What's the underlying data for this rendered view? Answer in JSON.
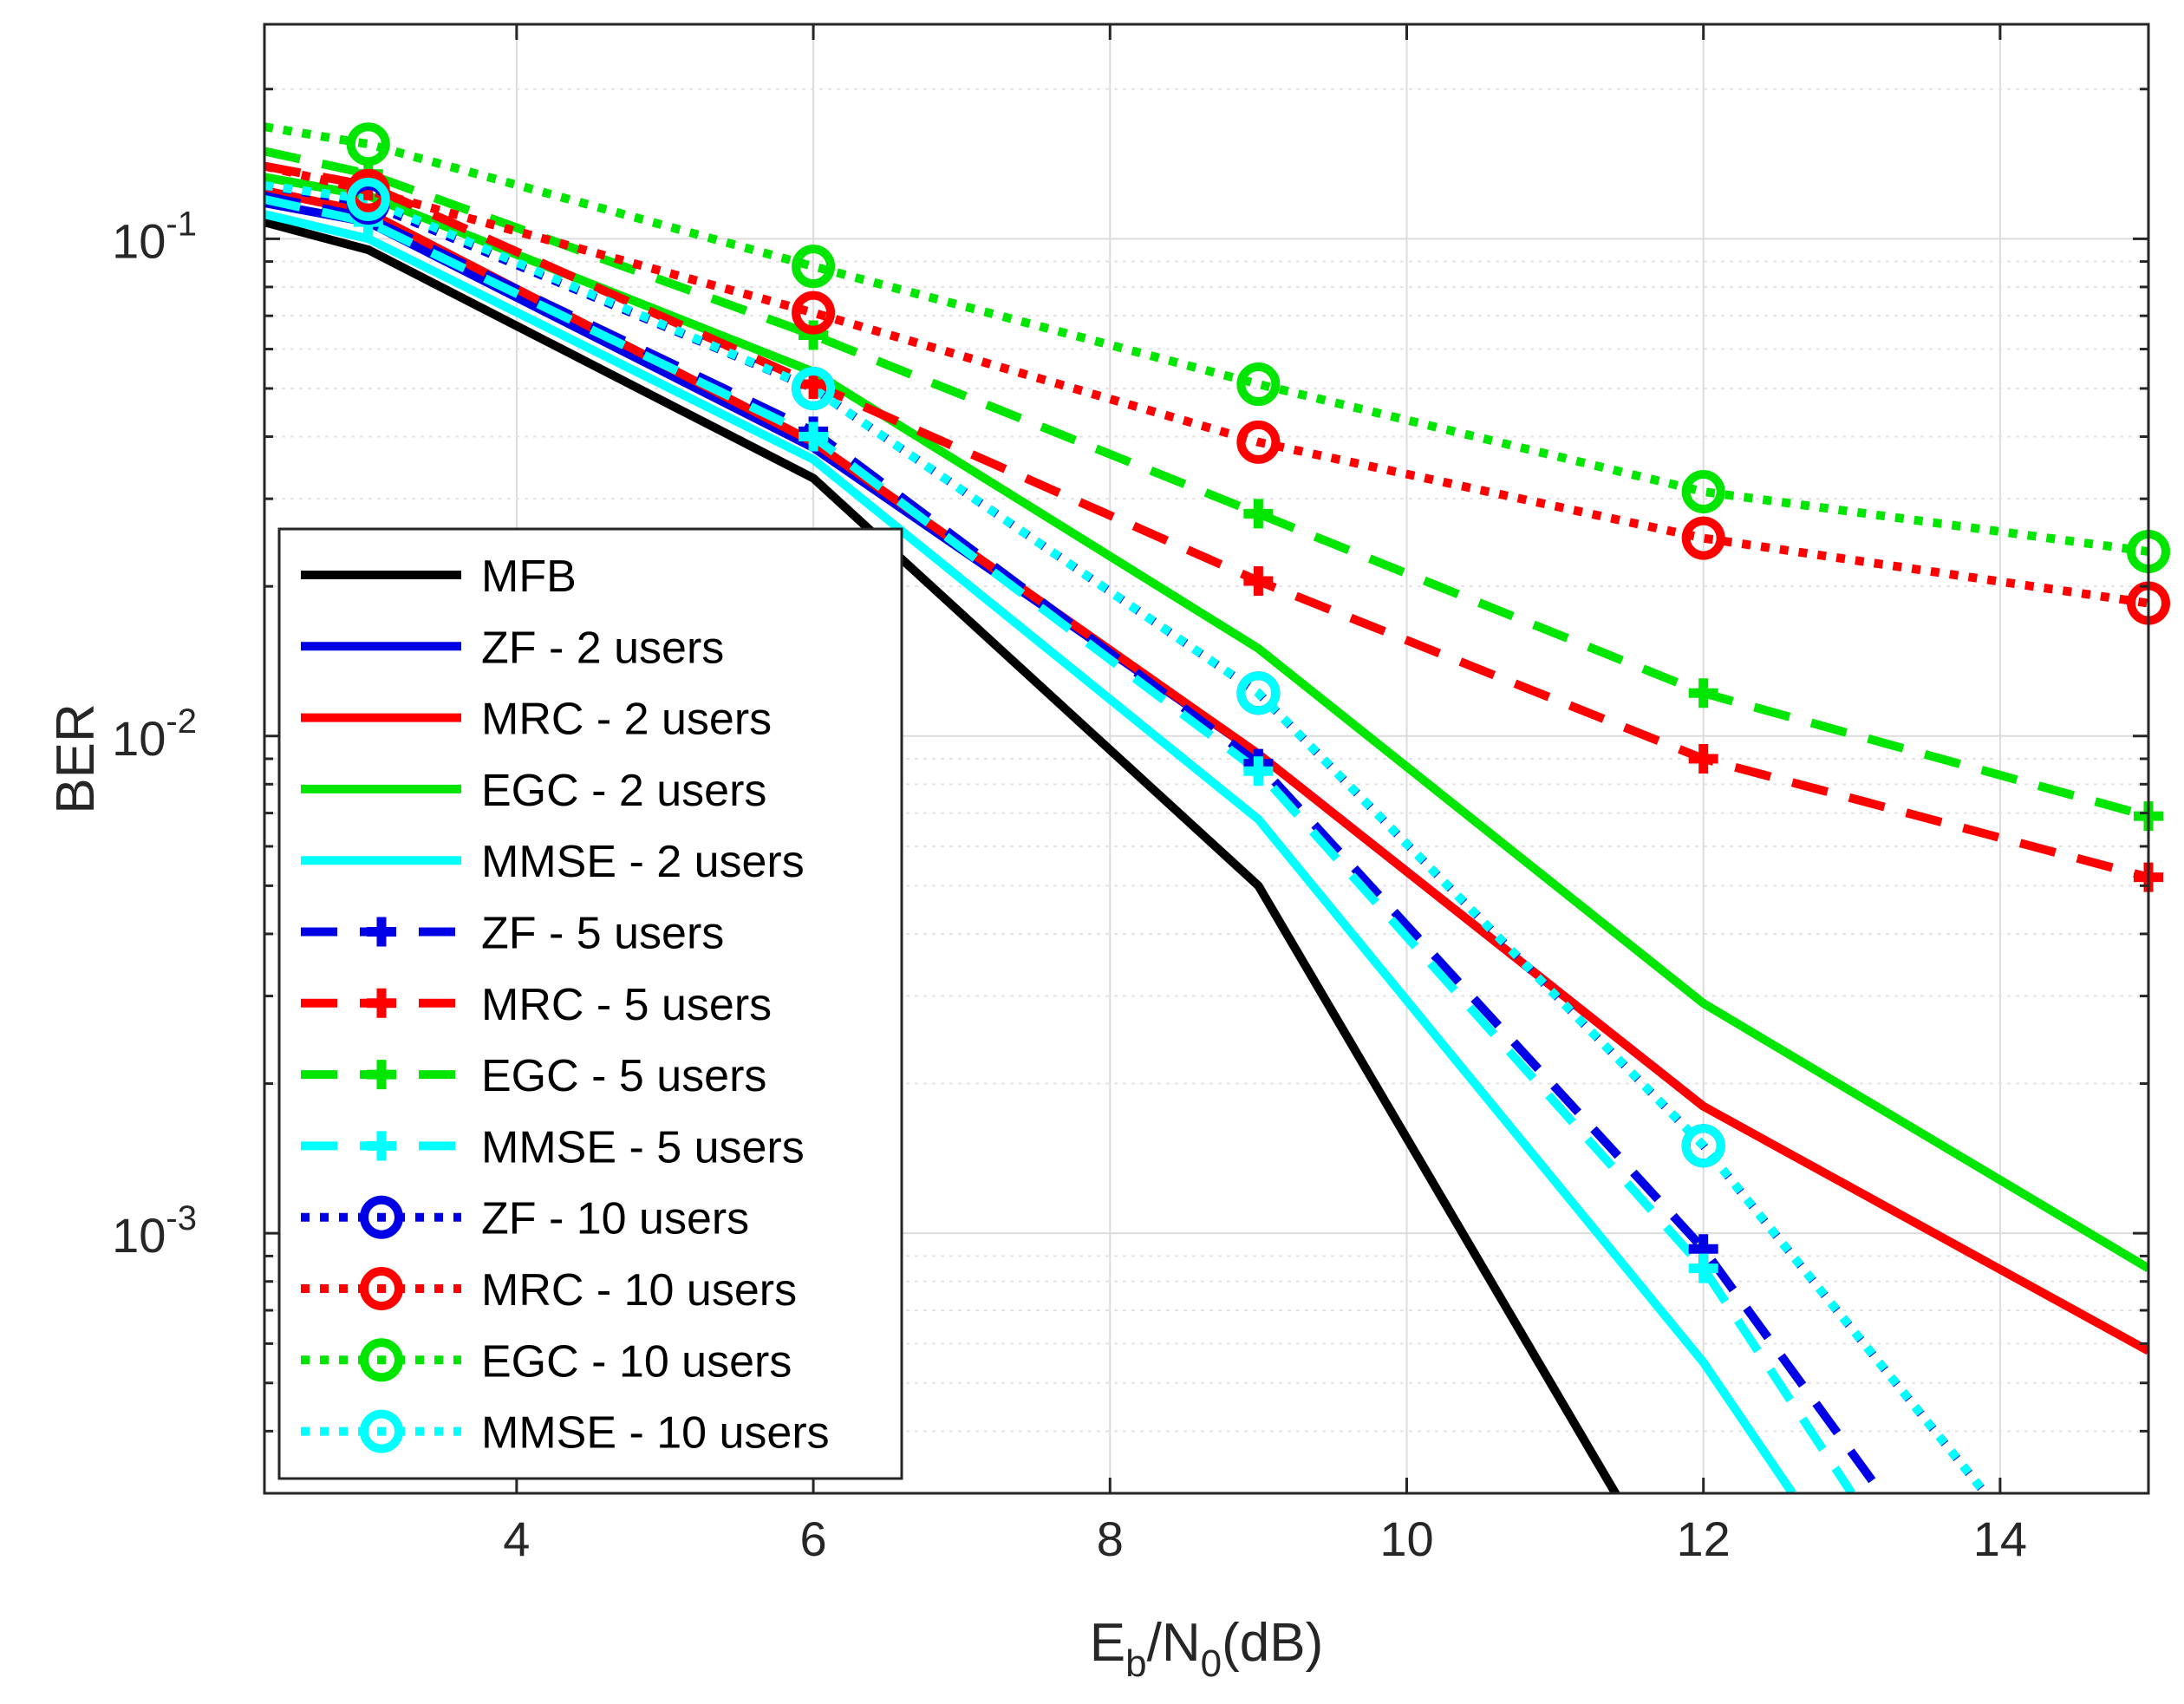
{
  "chart_data": {
    "type": "line",
    "xlabel": {
      "base1": "E",
      "sub1": "b",
      "mid": "/N",
      "sub2": "0",
      "tail": "(dB)"
    },
    "ylabel": "BER",
    "xlim": [
      2.3,
      15
    ],
    "ylim": [
      0.0003,
      0.27
    ],
    "yscale": "log",
    "grid": true,
    "minor_grid": true,
    "legend_position": "bottom-left",
    "xticks": [
      "4",
      "6",
      "8",
      "10",
      "12",
      "14"
    ],
    "xtick_values": [
      4,
      6,
      8,
      10,
      12,
      14
    ],
    "yticks": [
      {
        "value": 0.1,
        "base": "10",
        "exp": "-1"
      },
      {
        "value": 0.01,
        "base": "10",
        "exp": "-2"
      },
      {
        "value": 0.001,
        "base": "10",
        "exp": "-3"
      }
    ],
    "series": [
      {
        "name": "MFB",
        "color": "#000000",
        "style": "solid",
        "marker": "none",
        "x": [
          2.3,
          3,
          6,
          9,
          12
        ],
        "y": [
          0.108,
          0.095,
          0.033,
          0.005,
          0.00015
        ]
      },
      {
        "name": "ZF - 2 users",
        "color": "#0000e6",
        "style": "solid",
        "marker": "none",
        "x": [
          2.3,
          3,
          6,
          9,
          12
        ],
        "y": [
          0.118,
          0.108,
          0.038,
          0.0092,
          0.0018
        ]
      },
      {
        "name": "MRC - 2 users",
        "color": "#ff0000",
        "style": "solid",
        "marker": "none",
        "x": [
          2.3,
          3,
          6,
          9,
          12,
          15
        ],
        "y": [
          0.125,
          0.113,
          0.039,
          0.0092,
          0.0018,
          0.00058
        ]
      },
      {
        "name": "EGC - 2 users",
        "color": "#00e600",
        "style": "solid",
        "marker": "none",
        "x": [
          2.3,
          3,
          6,
          9,
          12,
          15
        ],
        "y": [
          0.133,
          0.122,
          0.054,
          0.015,
          0.0029,
          0.00085
        ]
      },
      {
        "name": "MMSE - 2 users",
        "color": "#00ffff",
        "style": "solid",
        "marker": "none",
        "x": [
          2.3,
          3,
          6,
          9,
          12,
          12.6
        ],
        "y": [
          0.112,
          0.1,
          0.036,
          0.0068,
          0.00055,
          0.0003
        ]
      },
      {
        "name": "ZF - 5 users",
        "color": "#0000e6",
        "style": "dashed",
        "marker": "plus",
        "x": [
          2.3,
          3,
          6,
          9,
          12,
          13.2
        ],
        "y": [
          0.122,
          0.11,
          0.041,
          0.0088,
          0.00093,
          0.0003
        ]
      },
      {
        "name": "MRC  - 5 users",
        "color": "#ff0000",
        "style": "dashed",
        "marker": "plus",
        "x": [
          2.3,
          3,
          6,
          9,
          12,
          15
        ],
        "y": [
          0.14,
          0.128,
          0.051,
          0.0205,
          0.009,
          0.0052
        ]
      },
      {
        "name": "EGC  - 5 users",
        "color": "#00e600",
        "style": "dashed",
        "marker": "plus",
        "x": [
          2.3,
          3,
          6,
          9,
          12,
          15
        ],
        "y": [
          0.15,
          0.135,
          0.064,
          0.028,
          0.0122,
          0.0069
        ]
      },
      {
        "name": "MMSE  - 5 users",
        "color": "#00ffff",
        "style": "dashed",
        "marker": "plus",
        "x": [
          2.3,
          3,
          6,
          9,
          12,
          13.0
        ],
        "y": [
          0.12,
          0.108,
          0.04,
          0.0085,
          0.00085,
          0.0003
        ]
      },
      {
        "name": "ZF - 10 users",
        "color": "#0000e6",
        "style": "dotted",
        "marker": "circle",
        "x": [
          2.3,
          3,
          6,
          9,
          12,
          13.9
        ],
        "y": [
          0.128,
          0.118,
          0.05,
          0.0122,
          0.0015,
          0.0003
        ]
      },
      {
        "name": "MRC - 10 users",
        "color": "#ff0000",
        "style": "dotted",
        "marker": "circle",
        "x": [
          2.3,
          3,
          6,
          9,
          12,
          15
        ],
        "y": [
          0.14,
          0.125,
          0.071,
          0.039,
          0.025,
          0.0185
        ]
      },
      {
        "name": "EGC - 10 users",
        "color": "#00e600",
        "style": "dotted",
        "marker": "circle",
        "x": [
          2.3,
          3,
          6,
          9,
          12,
          15
        ],
        "y": [
          0.168,
          0.155,
          0.088,
          0.051,
          0.031,
          0.0235
        ]
      },
      {
        "name": "MMSE - 10 users",
        "color": "#00ffff",
        "style": "dotted",
        "marker": "circle",
        "x": [
          2.3,
          3,
          6,
          9,
          12,
          13.9
        ],
        "y": [
          0.128,
          0.12,
          0.05,
          0.0122,
          0.0015,
          0.0003
        ]
      }
    ]
  }
}
